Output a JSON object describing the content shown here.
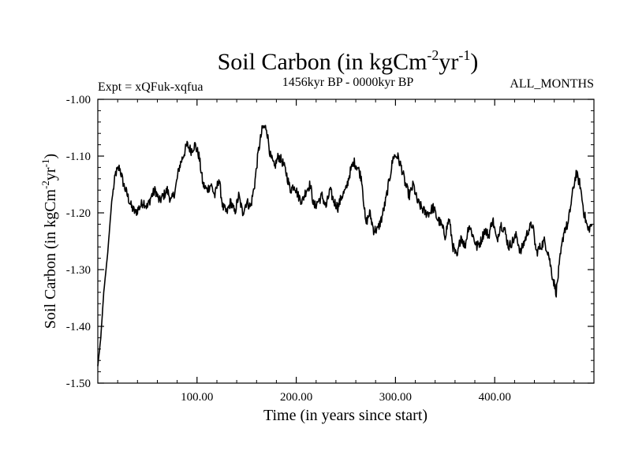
{
  "chart_data": {
    "type": "line",
    "title": {
      "main": "Soil Carbon (in kgCm",
      "sup1": "-2",
      "mid": "yr",
      "sup2": "-1",
      "end": ")"
    },
    "subtitle": "1456kyr BP - 0000kyr BP",
    "experiment": "Expt = xQFuk-xqfua",
    "period": "ALL_MONTHS",
    "xlabel": "Time (in years since start)",
    "ylabel": {
      "main": "Soil Carbon (in kgCm",
      "sup1": "-2",
      "mid": "yr",
      "sup2": "-1",
      "end": ")"
    },
    "xlim": [
      0,
      500
    ],
    "ylim": [
      -1.5,
      -1.0
    ],
    "xticks": [
      {
        "value": 100,
        "label": "100.00"
      },
      {
        "value": 200,
        "label": "200.00"
      },
      {
        "value": 300,
        "label": "300.00"
      },
      {
        "value": 400,
        "label": "400.00"
      }
    ],
    "yticks": [
      {
        "value": -1.0,
        "label": "-1.00"
      },
      {
        "value": -1.1,
        "label": "-1.10"
      },
      {
        "value": -1.2,
        "label": "-1.20"
      },
      {
        "value": -1.3,
        "label": "-1.30"
      },
      {
        "value": -1.4,
        "label": "-1.40"
      },
      {
        "value": -1.5,
        "label": "-1.50"
      }
    ],
    "series": [
      {
        "name": "Soil Carbon",
        "x": [
          0,
          3,
          6,
          10,
          14,
          18,
          22,
          26,
          30,
          34,
          38,
          42,
          46,
          50,
          54,
          58,
          62,
          66,
          70,
          74,
          78,
          82,
          86,
          90,
          94,
          98,
          102,
          106,
          110,
          114,
          118,
          122,
          126,
          130,
          134,
          138,
          142,
          146,
          150,
          154,
          158,
          162,
          166,
          170,
          174,
          178,
          182,
          186,
          190,
          194,
          198,
          202,
          206,
          210,
          214,
          218,
          222,
          226,
          230,
          234,
          238,
          242,
          246,
          250,
          254,
          258,
          262,
          266,
          270,
          274,
          278,
          282,
          286,
          290,
          294,
          298,
          302,
          306,
          310,
          314,
          318,
          322,
          326,
          330,
          334,
          338,
          342,
          346,
          350,
          354,
          358,
          362,
          366,
          370,
          374,
          378,
          382,
          386,
          390,
          394,
          398,
          402,
          406,
          410,
          414,
          418,
          422,
          426,
          430,
          434,
          438,
          442,
          446,
          450,
          454,
          458,
          462,
          466,
          470,
          474,
          478,
          482,
          486,
          490,
          494,
          498
        ],
        "y": [
          -1.47,
          -1.42,
          -1.34,
          -1.27,
          -1.18,
          -1.13,
          -1.12,
          -1.15,
          -1.17,
          -1.19,
          -1.2,
          -1.19,
          -1.18,
          -1.19,
          -1.17,
          -1.16,
          -1.18,
          -1.17,
          -1.16,
          -1.18,
          -1.16,
          -1.12,
          -1.1,
          -1.08,
          -1.09,
          -1.08,
          -1.1,
          -1.15,
          -1.16,
          -1.15,
          -1.17,
          -1.14,
          -1.19,
          -1.2,
          -1.18,
          -1.2,
          -1.17,
          -1.2,
          -1.18,
          -1.19,
          -1.15,
          -1.09,
          -1.05,
          -1.05,
          -1.1,
          -1.12,
          -1.1,
          -1.11,
          -1.13,
          -1.16,
          -1.15,
          -1.17,
          -1.18,
          -1.16,
          -1.15,
          -1.19,
          -1.18,
          -1.17,
          -1.19,
          -1.16,
          -1.18,
          -1.19,
          -1.17,
          -1.16,
          -1.13,
          -1.11,
          -1.12,
          -1.14,
          -1.22,
          -1.2,
          -1.23,
          -1.23,
          -1.21,
          -1.18,
          -1.14,
          -1.1,
          -1.1,
          -1.12,
          -1.15,
          -1.17,
          -1.15,
          -1.18,
          -1.19,
          -1.2,
          -1.2,
          -1.19,
          -1.21,
          -1.22,
          -1.24,
          -1.21,
          -1.26,
          -1.28,
          -1.24,
          -1.26,
          -1.22,
          -1.24,
          -1.26,
          -1.25,
          -1.23,
          -1.24,
          -1.21,
          -1.25,
          -1.22,
          -1.23,
          -1.26,
          -1.25,
          -1.24,
          -1.27,
          -1.25,
          -1.23,
          -1.22,
          -1.27,
          -1.26,
          -1.25,
          -1.27,
          -1.31,
          -1.34,
          -1.28,
          -1.23,
          -1.22,
          -1.17,
          -1.13,
          -1.15,
          -1.2,
          -1.23,
          -1.22
        ]
      }
    ]
  }
}
